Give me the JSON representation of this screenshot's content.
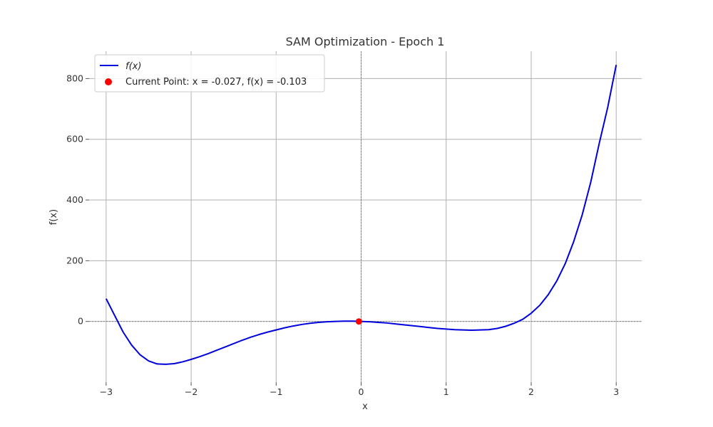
{
  "chart_data": {
    "type": "line",
    "title": "SAM Optimization - Epoch 1",
    "xlabel": "x",
    "ylabel": "f(x)",
    "xlim": [
      -3.2,
      3.3
    ],
    "ylim": [
      -200,
      890
    ],
    "xticks": [
      -3,
      -2,
      -1,
      0,
      1,
      2,
      3
    ],
    "xtick_labels": [
      "−3",
      "−2",
      "−1",
      "0",
      "1",
      "2",
      "3"
    ],
    "yticks": [
      0,
      200,
      400,
      600,
      800
    ],
    "ytick_labels": [
      "0",
      "200",
      "400",
      "600",
      "800"
    ],
    "grid": true,
    "legend_position": "top-left",
    "series": [
      {
        "name": "f(x)",
        "color": "#0000dd",
        "x": [
          -3.0,
          -2.9,
          -2.8,
          -2.7,
          -2.6,
          -2.5,
          -2.4,
          -2.3,
          -2.2,
          -2.1,
          -2.0,
          -1.9,
          -1.8,
          -1.7,
          -1.6,
          -1.5,
          -1.4,
          -1.3,
          -1.2,
          -1.1,
          -1.0,
          -0.9,
          -0.8,
          -0.7,
          -0.6,
          -0.5,
          -0.4,
          -0.3,
          -0.2,
          -0.1,
          0.0,
          0.1,
          0.2,
          0.3,
          0.4,
          0.5,
          0.6,
          0.7,
          0.8,
          0.9,
          1.0,
          1.1,
          1.2,
          1.3,
          1.4,
          1.5,
          1.6,
          1.7,
          1.8,
          1.9,
          2.0,
          2.1,
          2.2,
          2.3,
          2.4,
          2.5,
          2.6,
          2.7,
          2.8,
          2.9,
          3.0
        ],
        "y": [
          75,
          20,
          -35,
          -78,
          -110,
          -130,
          -140,
          -141,
          -139,
          -133,
          -125,
          -116,
          -106,
          -95,
          -84,
          -73,
          -62,
          -52,
          -43,
          -35,
          -28,
          -21,
          -15,
          -10,
          -6,
          -3,
          -1,
          0,
          1,
          1,
          0,
          -1,
          -3,
          -5,
          -8,
          -11,
          -14,
          -17,
          -20,
          -23,
          -25,
          -27,
          -28,
          -29,
          -28,
          -27,
          -23,
          -16,
          -6,
          7,
          27,
          53,
          88,
          133,
          190,
          263,
          351,
          458,
          586,
          705,
          845
        ]
      }
    ],
    "current_point": {
      "label": "Current Point: x = -0.027, f(x) = -0.103",
      "x": -0.027,
      "y": -0.103,
      "color": "#ff0000"
    }
  }
}
